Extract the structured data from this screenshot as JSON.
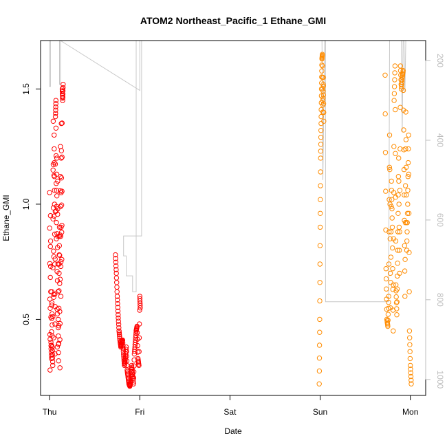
{
  "chart_data": {
    "type": "scatter",
    "title": "ATOM2 Northeast_Pacific_1 Ethane_GMI",
    "xlabel": "Date",
    "ylabel": "Ethane_GMI",
    "x_ticks": [
      "Thu",
      "Fri",
      "Sat",
      "Sun",
      "Mon"
    ],
    "xlim": [
      -0.1,
      4.17
    ],
    "ylim": [
      0.17,
      1.71
    ],
    "y_ticks": [
      "0.5",
      "1.0",
      "1.5"
    ],
    "y_tick_values": [
      0.5,
      1.0,
      1.5
    ],
    "y2_ticks": [
      "200",
      "400",
      "600",
      "800",
      "1000"
    ],
    "y2_tick_values": [
      200,
      400,
      600,
      800,
      1000
    ],
    "y2lim": [
      1040,
      150
    ],
    "y2_reversed": true,
    "colors": {
      "axis": "#000000",
      "right_axis": "#bdbdbd",
      "pressure_line": "#c8c8c8",
      "series_red": "#ff0000",
      "series_orange": "#ff8c00"
    },
    "series": [
      {
        "color": "#ff0000",
        "marker": "open-circle",
        "x": [
          0.0,
          0.005,
          0.01,
          0.015,
          0.02,
          0.025,
          0.03,
          0.035,
          0.04,
          0.045,
          0.05,
          0.055,
          0.06,
          0.065,
          0.07,
          0.075,
          0.08,
          0.085,
          0.09,
          0.095,
          0.1,
          0.105,
          0.11,
          0.115,
          0.12,
          0.125,
          0.13,
          0.135,
          0.14,
          0.145,
          0.15
        ],
        "y": [
          1.05,
          0.28,
          0.95,
          0.4,
          0.33,
          0.62,
          0.38,
          0.3,
          1.36,
          0.42,
          1.3,
          1.0,
          0.35,
          1.38,
          1.45,
          0.85,
          1.2,
          0.38,
          1.1,
          0.5,
          0.32,
          0.7,
          0.9,
          0.29,
          1.25,
          0.6,
          1.35,
          0.76,
          1.5,
          1.45,
          1.52
        ]
      },
      {
        "color": "#ff0000",
        "marker": "open-circle",
        "x": [
          0.73,
          0.74,
          0.75,
          0.76,
          0.77,
          0.78,
          0.79,
          0.8,
          0.81,
          0.82,
          0.83,
          0.84,
          0.85,
          0.86,
          0.87,
          0.88,
          0.89,
          0.9,
          0.91,
          0.92,
          0.93,
          0.94,
          0.95,
          0.96,
          0.97,
          0.98,
          0.99,
          1.0,
          1.005
        ],
        "y": [
          0.78,
          0.7,
          0.6,
          0.52,
          0.45,
          0.41,
          0.38,
          0.4,
          0.41,
          0.35,
          0.3,
          0.33,
          0.38,
          0.28,
          0.25,
          0.22,
          0.21,
          0.23,
          0.3,
          0.26,
          0.22,
          0.35,
          0.4,
          0.45,
          0.47,
          0.33,
          0.3,
          0.6,
          0.55
        ]
      },
      {
        "color": "#ff8c00",
        "marker": "open-circle",
        "x": [
          2.99,
          2.995,
          3.0,
          3.005,
          3.01,
          3.015,
          3.02,
          3.025,
          3.03,
          3.035,
          3.04
        ],
        "y": [
          0.22,
          0.5,
          0.9,
          1.2,
          1.35,
          1.5,
          1.63,
          1.65,
          1.4,
          1.55,
          1.36
        ]
      },
      {
        "color": "#ff8c00",
        "marker": "open-circle",
        "x": [
          3.72,
          3.73,
          3.74,
          3.75,
          3.76,
          3.77,
          3.78,
          3.79,
          3.8,
          3.81,
          3.82,
          3.83,
          3.84,
          3.85,
          3.86,
          3.87,
          3.88,
          3.89,
          3.9,
          3.91,
          3.92,
          3.93,
          3.94,
          3.95,
          3.96,
          3.97,
          3.98,
          3.99,
          4.0,
          4.01
        ],
        "y": [
          1.56,
          0.72,
          0.5,
          0.47,
          0.6,
          1.3,
          0.55,
          1.1,
          0.9,
          0.45,
          1.45,
          1.6,
          0.65,
          0.52,
          0.8,
          1.2,
          0.7,
          1.6,
          1.5,
          1.55,
          1.58,
          1.15,
          0.6,
          1.4,
          0.8,
          1.0,
          1.3,
          0.45,
          0.3,
          0.22
        ]
      }
    ],
    "pressure_line": {
      "x": [
        0.0,
        0.0,
        0.01,
        0.01,
        0.1,
        0.11,
        0.11,
        0.12,
        0.12,
        1.0,
        1.0,
        0.96,
        0.96,
        0.92,
        0.92,
        0.85,
        0.85,
        0.82,
        0.82,
        1.02,
        1.02,
        3.02,
        3.03,
        3.05,
        3.06,
        3.06,
        3.07,
        3.76,
        3.77,
        3.9,
        3.91,
        3.92,
        3.93,
        3.94,
        3.95,
        4.0
      ],
      "y": [
        150,
        265,
        265,
        150,
        150,
        150,
        260,
        260,
        150,
        275,
        150,
        150,
        780,
        780,
        740,
        740,
        690,
        690,
        640,
        640,
        150,
        150,
        500,
        150,
        150,
        805,
        805,
        805,
        150,
        150,
        380,
        150,
        150,
        280,
        150,
        150
      ]
    }
  }
}
